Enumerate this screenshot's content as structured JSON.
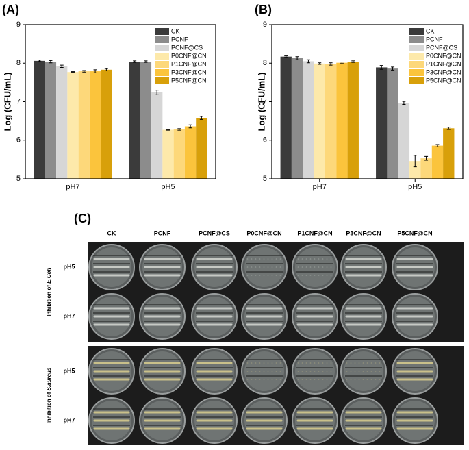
{
  "chart_data": [
    {
      "type": "bar",
      "panel": "(A)",
      "y_label": "Log (CFU/mL)",
      "categories": [
        "pH7",
        "pH5"
      ],
      "ylim": [
        5,
        9
      ],
      "yticks": [
        5,
        6,
        7,
        8,
        9
      ],
      "legend": "upper right",
      "series": [
        {
          "name": "CK",
          "color": "#3b3b3b",
          "values": [
            8.06,
            8.04
          ],
          "errors": [
            0.02,
            0.02
          ]
        },
        {
          "name": "PCNF",
          "color": "#8c8c8c",
          "values": [
            8.04,
            8.04
          ],
          "errors": [
            0.03,
            0.02
          ]
        },
        {
          "name": "PCNF@CS",
          "color": "#d6d6d6",
          "values": [
            7.92,
            7.24
          ],
          "errors": [
            0.03,
            0.06
          ]
        },
        {
          "name": "P0CNF@CN",
          "color": "#fde9aa",
          "values": [
            7.77,
            6.27
          ],
          "errors": [
            0.01,
            0.01
          ]
        },
        {
          "name": "P1CNF@CN",
          "color": "#fdd87a",
          "values": [
            7.79,
            6.28
          ],
          "errors": [
            0.02,
            0.02
          ]
        },
        {
          "name": "P3CNF@CN",
          "color": "#fbc43c",
          "values": [
            7.79,
            6.36
          ],
          "errors": [
            0.04,
            0.04
          ]
        },
        {
          "name": "P5CNF@CN",
          "color": "#d8a00a",
          "values": [
            7.83,
            6.58
          ],
          "errors": [
            0.03,
            0.04
          ]
        }
      ]
    },
    {
      "type": "bar",
      "panel": "(B)",
      "y_label": "Log (CFU/mL)",
      "categories": [
        "pH7",
        "pH5"
      ],
      "ylim": [
        5,
        9
      ],
      "yticks": [
        5,
        6,
        7,
        8,
        9
      ],
      "legend": "upper right",
      "series": [
        {
          "name": "CK",
          "color": "#3b3b3b",
          "values": [
            8.17,
            7.89
          ],
          "errors": [
            0.02,
            0.05
          ]
        },
        {
          "name": "PCNF",
          "color": "#8c8c8c",
          "values": [
            8.13,
            7.86
          ],
          "errors": [
            0.04,
            0.04
          ]
        },
        {
          "name": "PCNF@CS",
          "color": "#d6d6d6",
          "values": [
            8.05,
            6.97
          ],
          "errors": [
            0.04,
            0.04
          ]
        },
        {
          "name": "P0CNF@CN",
          "color": "#fde9aa",
          "values": [
            7.99,
            5.46
          ],
          "errors": [
            0.02,
            0.15
          ]
        },
        {
          "name": "P1CNF@CN",
          "color": "#fdd87a",
          "values": [
            7.98,
            5.53
          ],
          "errors": [
            0.03,
            0.05
          ]
        },
        {
          "name": "P3CNF@CN",
          "color": "#fbc43c",
          "values": [
            8.01,
            5.86
          ],
          "errors": [
            0.02,
            0.03
          ]
        },
        {
          "name": "P5CNF@CN",
          "color": "#d8a00a",
          "values": [
            8.04,
            6.31
          ],
          "errors": [
            0.02,
            0.03
          ]
        }
      ]
    }
  ],
  "photo_panel": {
    "label": "(C)",
    "columns": [
      "CK",
      "PCNF",
      "PCNF@CS",
      "P0CNF@CN",
      "P1CNF@CN",
      "P3CNF@CN",
      "P5CNF@CN"
    ],
    "groups": [
      {
        "prefix": "Inhibition of ",
        "organism": "E.Coli",
        "rows": [
          "pH5",
          "pH7"
        ]
      },
      {
        "prefix": "Inhibition of ",
        "organism": "S.aureus",
        "rows": [
          "pH5",
          "pH7"
        ]
      }
    ]
  }
}
